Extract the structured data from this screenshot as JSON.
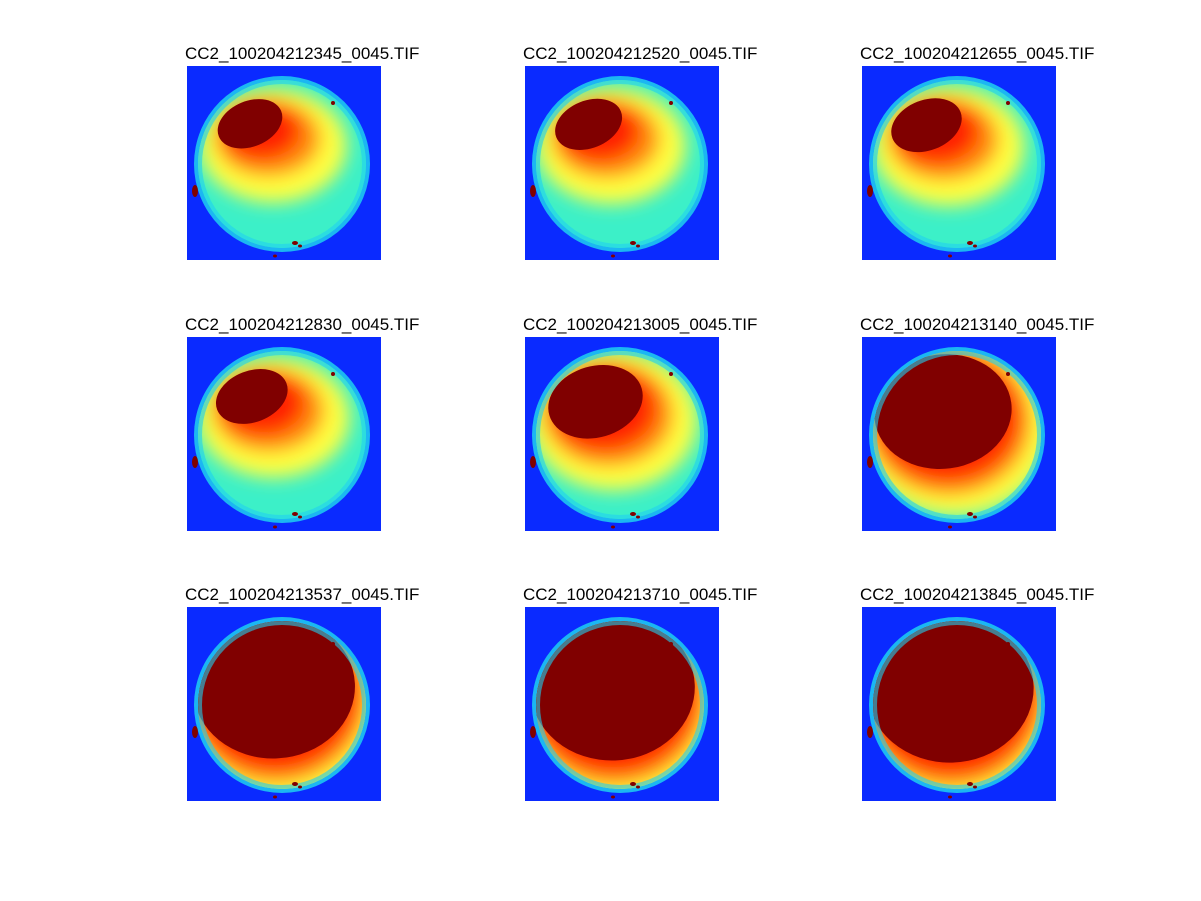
{
  "panels": [
    {
      "title": "CC2_100204212345_0045.TIF",
      "saturation": 0.1
    },
    {
      "title": "CC2_100204212520_0045.TIF",
      "saturation": 0.12
    },
    {
      "title": "CC2_100204212655_0045.TIF",
      "saturation": 0.15
    },
    {
      "title": "CC2_100204212830_0045.TIF",
      "saturation": 0.16
    },
    {
      "title": "CC2_100204213005_0045.TIF",
      "saturation": 0.35
    },
    {
      "title": "CC2_100204213140_0045.TIF",
      "saturation": 0.7
    },
    {
      "title": "CC2_100204213537_0045.TIF",
      "saturation": 0.9
    },
    {
      "title": "CC2_100204213710_0045.TIF",
      "saturation": 0.92
    },
    {
      "title": "CC2_100204213845_0045.TIF",
      "saturation": 0.94
    }
  ],
  "colors": {
    "background_field": "#0a2aff",
    "rim": "#1fd0f0",
    "cold": "#3cf0c8",
    "mid": "#ffff40",
    "warm": "#ff8a10",
    "hot": "#ff2000",
    "saturated": "#800000"
  }
}
